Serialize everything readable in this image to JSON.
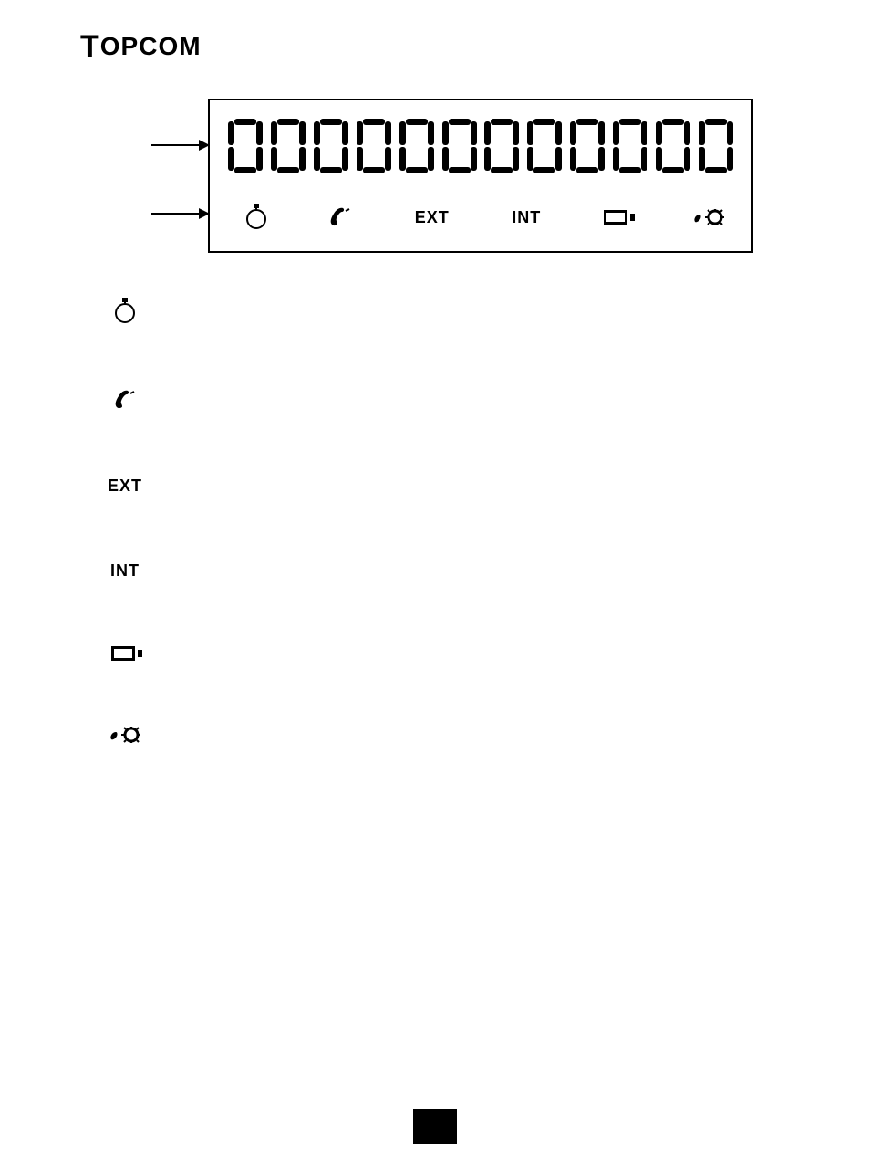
{
  "brand": "TOPCOM",
  "lcd": {
    "digits": [
      "0",
      "0",
      "0",
      "0",
      "0",
      "0",
      "0",
      "0",
      "0",
      "0",
      "0",
      "0"
    ],
    "indicators": {
      "stopwatch": true,
      "handset": true,
      "ext_label": "EXT",
      "int_label": "INT",
      "battery": true,
      "gear": true
    }
  },
  "legend": {
    "ext_label": "EXT",
    "int_label": "INT"
  },
  "colors": {
    "fg": "#000000",
    "bg": "#ffffff"
  }
}
